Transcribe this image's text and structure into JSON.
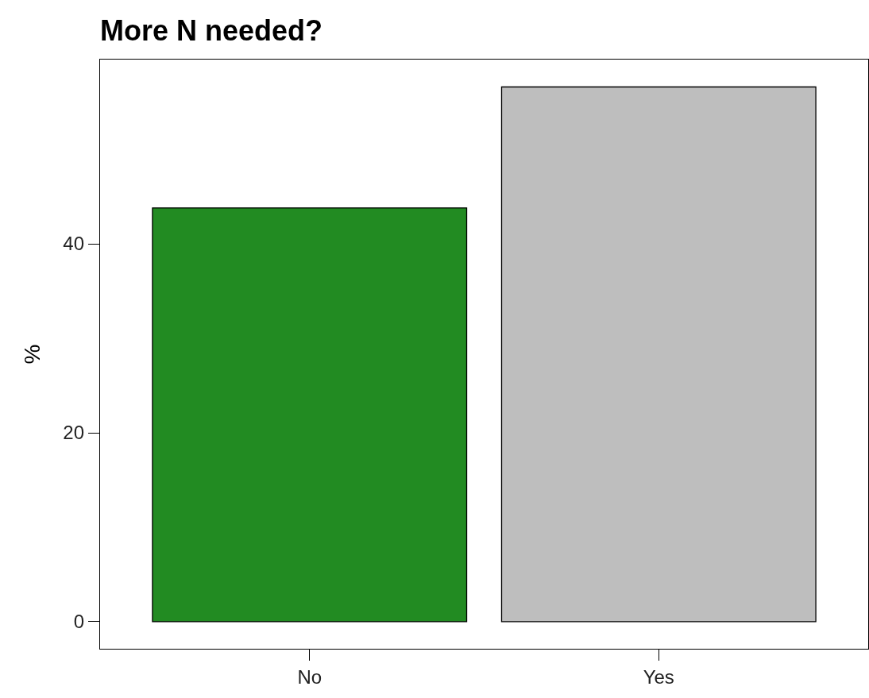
{
  "chart_data": {
    "type": "bar",
    "title": "More N needed?",
    "ylabel": "%",
    "categories": [
      "No",
      "Yes"
    ],
    "values": [
      43.8,
      56.6
    ],
    "colors": [
      "#228b22",
      "#bebebe"
    ],
    "ylim": [
      -2.86,
      59.5
    ],
    "yticks": [
      0,
      20,
      40
    ],
    "grid": false
  }
}
